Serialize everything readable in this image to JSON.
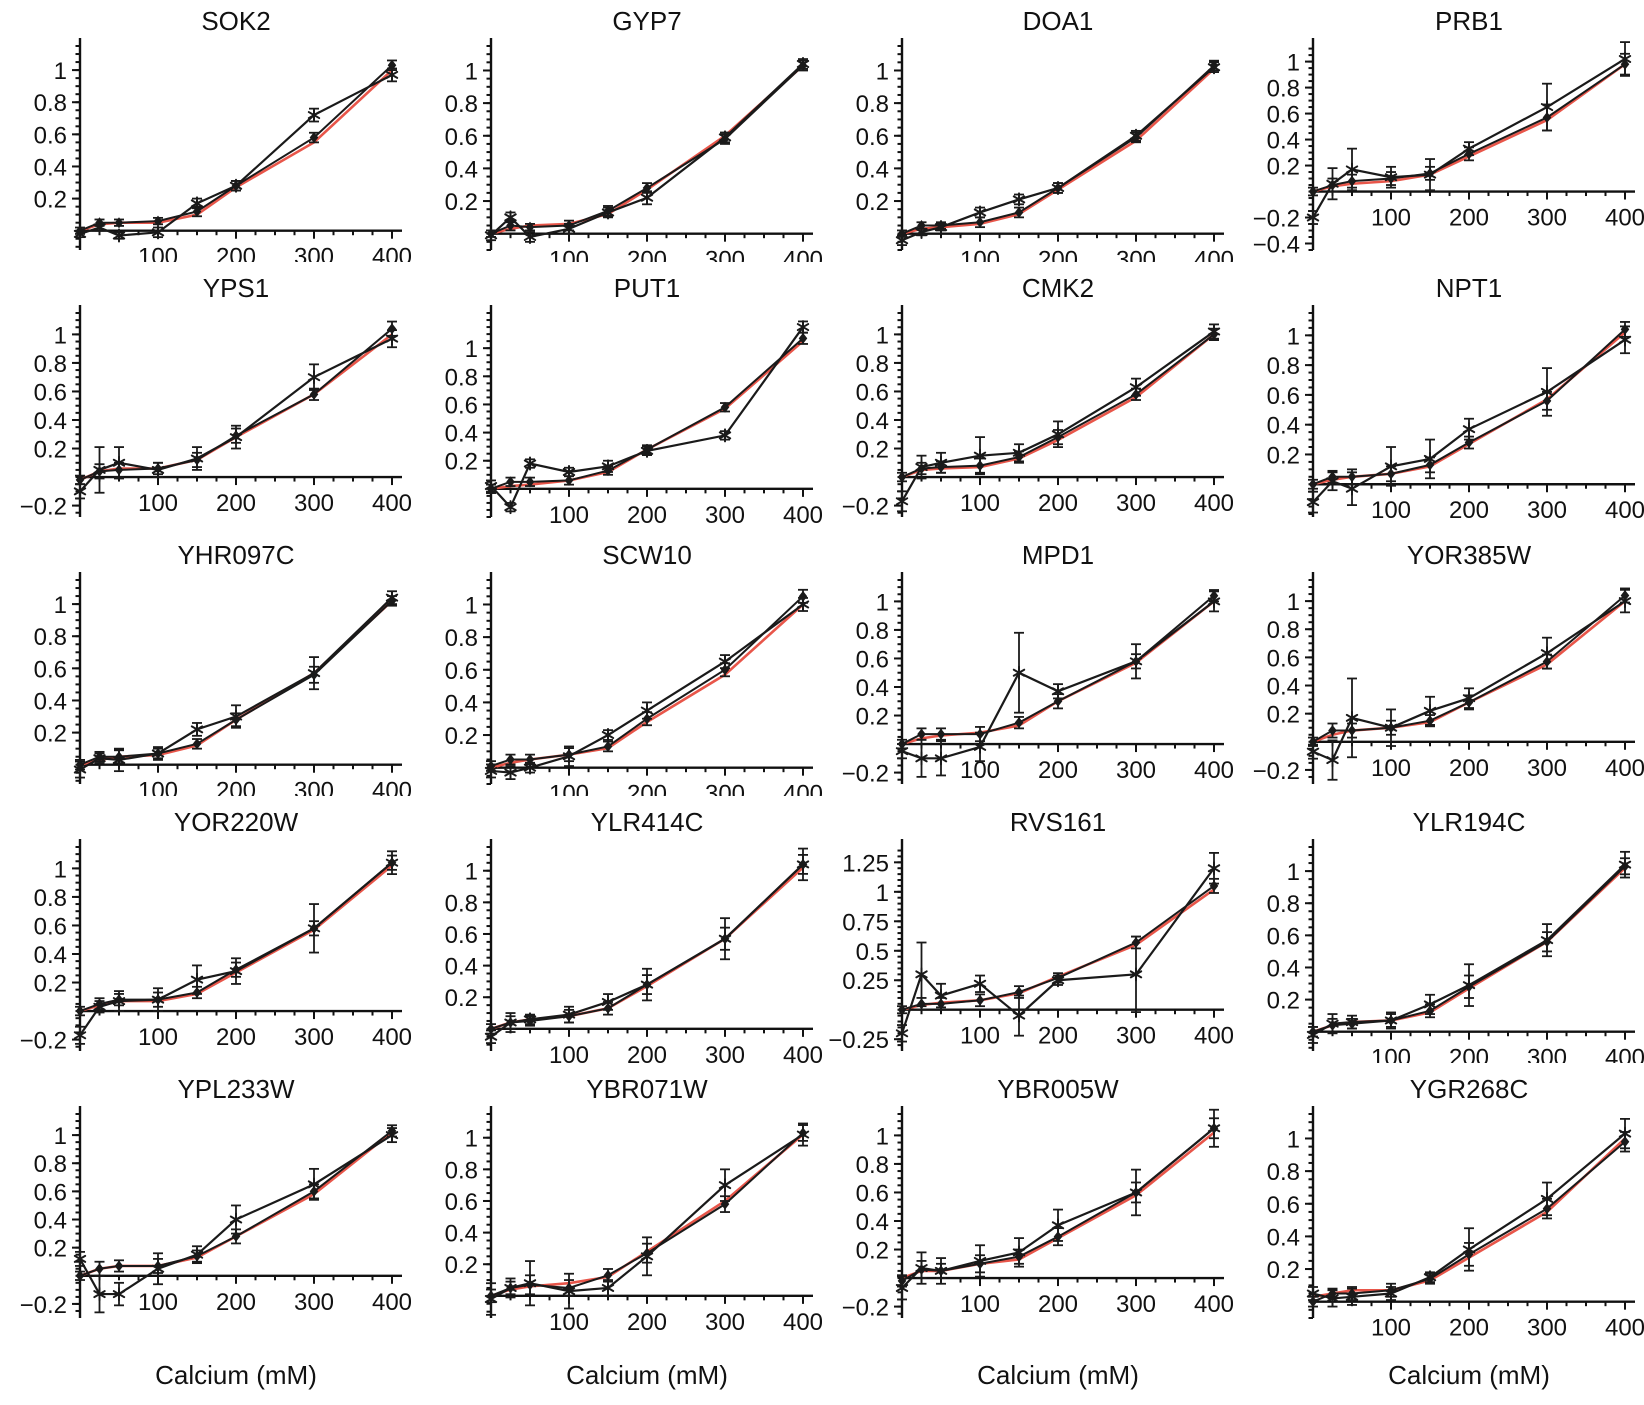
{
  "figure": {
    "xlabel": "Calcium (mM)",
    "x_ticks": [
      100,
      200,
      300,
      400
    ],
    "x_minor_step": 25,
    "x": [
      0,
      25,
      50,
      100,
      150,
      200,
      300,
      400
    ],
    "colors": {
      "model_line": "#e8564a",
      "data_line": "#1a1a1a",
      "axis": "#111111"
    },
    "series_names": {
      "red": "model_fit",
      "star": "observed-star-markers",
      "diamond": "observed-diamond-markers"
    }
  },
  "chart_data": [
    {
      "type": "line",
      "title": "SOK2",
      "yticks": [
        0.2,
        0.4,
        0.6,
        0.8,
        1
      ],
      "ylim": [
        -0.12,
        1.15
      ],
      "show_xlabel": false,
      "red": [
        0,
        0.04,
        0.05,
        0.05,
        0.1,
        0.27,
        0.55,
        1.0
      ],
      "star": [
        -0.02,
        0.02,
        -0.03,
        -0.01,
        0.17,
        0.28,
        0.72,
        0.97
      ],
      "star_err": [
        0.02,
        0.02,
        0.02,
        0.03,
        0.03,
        0.03,
        0.04,
        0.04
      ],
      "diamond": [
        0.0,
        0.05,
        0.05,
        0.06,
        0.12,
        0.28,
        0.58,
        1.03
      ],
      "diamond_err": [
        0.02,
        0.02,
        0.02,
        0.02,
        0.03,
        0.03,
        0.03,
        0.03
      ]
    },
    {
      "type": "line",
      "title": "GYP7",
      "yticks": [
        0.2,
        0.4,
        0.6,
        0.8,
        1
      ],
      "ylim": [
        -0.1,
        1.15
      ],
      "show_xlabel": false,
      "red": [
        0,
        0.03,
        0.05,
        0.06,
        0.12,
        0.27,
        0.6,
        1.03
      ],
      "star": [
        -0.01,
        0.1,
        -0.02,
        0.03,
        0.13,
        0.22,
        0.59,
        1.04
      ],
      "star_err": [
        0.03,
        0.03,
        0.03,
        0.03,
        0.03,
        0.04,
        0.03,
        0.03
      ],
      "diamond": [
        0.0,
        0.05,
        0.04,
        0.05,
        0.14,
        0.28,
        0.58,
        1.03
      ],
      "diamond_err": [
        0.02,
        0.03,
        0.02,
        0.03,
        0.03,
        0.03,
        0.03,
        0.03
      ]
    },
    {
      "type": "line",
      "title": "DOA1",
      "yticks": [
        0.2,
        0.4,
        0.6,
        0.8,
        1
      ],
      "ylim": [
        -0.1,
        1.15
      ],
      "show_xlabel": false,
      "red": [
        0,
        0.03,
        0.04,
        0.06,
        0.12,
        0.27,
        0.57,
        1.01
      ],
      "star": [
        -0.04,
        0.01,
        0.04,
        0.13,
        0.21,
        0.28,
        0.6,
        1.02
      ],
      "star_err": [
        0.03,
        0.02,
        0.02,
        0.03,
        0.03,
        0.03,
        0.03,
        0.03
      ],
      "diamond": [
        0.0,
        0.05,
        0.05,
        0.07,
        0.13,
        0.28,
        0.59,
        1.03
      ],
      "diamond_err": [
        0.02,
        0.02,
        0.02,
        0.03,
        0.03,
        0.03,
        0.03,
        0.03
      ]
    },
    {
      "type": "line",
      "title": "PRB1",
      "yticks": [
        -0.4,
        -0.2,
        0.2,
        0.4,
        0.6,
        0.8,
        1
      ],
      "ylim": [
        -0.45,
        1.12
      ],
      "show_xlabel": false,
      "red": [
        0.0,
        0.04,
        0.06,
        0.08,
        0.13,
        0.27,
        0.55,
        0.98
      ],
      "star": [
        -0.2,
        0.06,
        0.17,
        0.11,
        0.13,
        0.33,
        0.65,
        1.02
      ],
      "star_err": [
        0.05,
        0.12,
        0.16,
        0.08,
        0.12,
        0.05,
        0.18,
        0.13
      ],
      "diamond": [
        0.0,
        0.05,
        0.08,
        0.1,
        0.14,
        0.29,
        0.57,
        0.98
      ],
      "diamond_err": [
        0.03,
        0.05,
        0.05,
        0.05,
        0.05,
        0.05,
        0.1,
        0.08
      ]
    },
    {
      "type": "line",
      "title": "YPS1",
      "yticks": [
        -0.2,
        0.2,
        0.4,
        0.6,
        0.8,
        1
      ],
      "ylim": [
        -0.28,
        1.15
      ],
      "show_xlabel": false,
      "red": [
        -0.02,
        0.04,
        0.06,
        0.06,
        0.12,
        0.28,
        0.58,
        1.0
      ],
      "star": [
        -0.1,
        0.05,
        0.1,
        0.05,
        0.13,
        0.28,
        0.7,
        0.97
      ],
      "star_err": [
        0.05,
        0.16,
        0.11,
        0.05,
        0.08,
        0.08,
        0.09,
        0.06
      ],
      "diamond": [
        -0.02,
        0.04,
        0.05,
        0.06,
        0.12,
        0.29,
        0.58,
        1.04
      ],
      "diamond_err": [
        0.03,
        0.05,
        0.05,
        0.04,
        0.05,
        0.05,
        0.04,
        0.05
      ]
    },
    {
      "type": "line",
      "title": "PUT1",
      "yticks": [
        0.2,
        0.4,
        0.6,
        0.8,
        1
      ],
      "ylim": [
        -0.2,
        1.25
      ],
      "show_xlabel": false,
      "red": [
        0.0,
        0.02,
        0.03,
        0.06,
        0.12,
        0.28,
        0.57,
        1.05
      ],
      "star": [
        0.02,
        -0.13,
        0.18,
        0.12,
        0.16,
        0.27,
        0.38,
        1.15
      ],
      "star_err": [
        0.04,
        0.03,
        0.03,
        0.03,
        0.04,
        0.03,
        0.03,
        0.04
      ],
      "diamond": [
        0.0,
        0.05,
        0.05,
        0.06,
        0.13,
        0.28,
        0.58,
        1.07
      ],
      "diamond_err": [
        0.03,
        0.03,
        0.03,
        0.03,
        0.03,
        0.03,
        0.03,
        0.04
      ]
    },
    {
      "type": "line",
      "title": "CMK2",
      "yticks": [
        -0.2,
        0.2,
        0.4,
        0.6,
        0.8,
        1
      ],
      "ylim": [
        -0.28,
        1.15
      ],
      "show_xlabel": false,
      "red": [
        0.0,
        0.05,
        0.06,
        0.07,
        0.13,
        0.26,
        0.56,
        1.0
      ],
      "star": [
        -0.17,
        0.07,
        0.1,
        0.15,
        0.17,
        0.3,
        0.63,
        1.02
      ],
      "star_err": [
        0.07,
        0.08,
        0.07,
        0.13,
        0.06,
        0.09,
        0.06,
        0.05
      ],
      "diamond": [
        0.0,
        0.06,
        0.07,
        0.08,
        0.14,
        0.28,
        0.58,
        1.0
      ],
      "diamond_err": [
        0.03,
        0.04,
        0.04,
        0.05,
        0.04,
        0.05,
        0.04,
        0.04
      ]
    },
    {
      "type": "line",
      "title": "NPT1",
      "yticks": [
        0.2,
        0.4,
        0.6,
        0.8,
        1
      ],
      "ylim": [
        -0.22,
        1.15
      ],
      "show_xlabel": false,
      "red": [
        0.0,
        0.03,
        0.05,
        0.07,
        0.12,
        0.27,
        0.57,
        1.02
      ],
      "star": [
        -0.12,
        0.02,
        -0.03,
        0.12,
        0.17,
        0.37,
        0.62,
        0.97
      ],
      "star_err": [
        0.07,
        0.06,
        0.11,
        0.13,
        0.13,
        0.07,
        0.16,
        0.09
      ],
      "diamond": [
        0.0,
        0.05,
        0.05,
        0.07,
        0.13,
        0.28,
        0.56,
        1.04
      ],
      "diamond_err": [
        0.03,
        0.04,
        0.05,
        0.05,
        0.05,
        0.04,
        0.06,
        0.05
      ]
    },
    {
      "type": "line",
      "title": "YHR097C",
      "yticks": [
        0.2,
        0.4,
        0.6,
        0.8,
        1
      ],
      "ylim": [
        -0.12,
        1.15
      ],
      "show_xlabel": false,
      "red": [
        0.0,
        0.03,
        0.05,
        0.06,
        0.12,
        0.28,
        0.57,
        1.02
      ],
      "star": [
        -0.03,
        0.04,
        0.03,
        0.07,
        0.22,
        0.3,
        0.57,
        1.04
      ],
      "star_err": [
        0.05,
        0.03,
        0.07,
        0.04,
        0.04,
        0.07,
        0.1,
        0.04
      ],
      "diamond": [
        0.0,
        0.05,
        0.05,
        0.07,
        0.13,
        0.28,
        0.56,
        1.02
      ],
      "diamond_err": [
        0.03,
        0.03,
        0.04,
        0.03,
        0.03,
        0.04,
        0.05,
        0.03
      ]
    },
    {
      "type": "line",
      "title": "SCW10",
      "yticks": [
        0.2,
        0.4,
        0.6,
        0.8,
        1
      ],
      "ylim": [
        -0.1,
        1.15
      ],
      "show_xlabel": false,
      "red": [
        0.0,
        0.03,
        0.05,
        0.08,
        0.12,
        0.28,
        0.57,
        1.0
      ],
      "star": [
        -0.02,
        -0.03,
        0.0,
        0.07,
        0.2,
        0.35,
        0.65,
        1.0
      ],
      "star_err": [
        0.04,
        0.04,
        0.03,
        0.06,
        0.03,
        0.05,
        0.04,
        0.04
      ],
      "diamond": [
        0.01,
        0.05,
        0.05,
        0.08,
        0.13,
        0.3,
        0.6,
        1.05
      ],
      "diamond_err": [
        0.03,
        0.03,
        0.03,
        0.04,
        0.03,
        0.04,
        0.04,
        0.04
      ]
    },
    {
      "type": "line",
      "title": "MPD1",
      "yticks": [
        -0.2,
        0.2,
        0.4,
        0.6,
        0.8,
        1
      ],
      "ylim": [
        -0.28,
        1.15
      ],
      "show_xlabel": false,
      "red": [
        0.0,
        0.04,
        0.06,
        0.08,
        0.13,
        0.3,
        0.57,
        1.0
      ],
      "star": [
        -0.05,
        -0.1,
        -0.1,
        -0.02,
        0.5,
        0.37,
        0.58,
        1.0
      ],
      "star_err": [
        0.05,
        0.13,
        0.12,
        0.1,
        0.28,
        0.05,
        0.12,
        0.07
      ],
      "diamond": [
        0.0,
        0.07,
        0.07,
        0.07,
        0.15,
        0.3,
        0.58,
        1.04
      ],
      "diamond_err": [
        0.03,
        0.04,
        0.04,
        0.05,
        0.04,
        0.05,
        0.05,
        0.04
      ]
    },
    {
      "type": "line",
      "title": "YOR385W",
      "yticks": [
        -0.2,
        0.2,
        0.4,
        0.6,
        0.8,
        1
      ],
      "ylim": [
        -0.3,
        1.15
      ],
      "show_xlabel": false,
      "red": [
        0.0,
        0.05,
        0.08,
        0.1,
        0.14,
        0.28,
        0.55,
        1.0
      ],
      "star": [
        -0.07,
        -0.13,
        0.17,
        0.1,
        0.22,
        0.31,
        0.63,
        1.0
      ],
      "star_err": [
        0.05,
        0.14,
        0.28,
        0.13,
        0.1,
        0.07,
        0.11,
        0.08
      ],
      "diamond": [
        0.0,
        0.08,
        0.08,
        0.1,
        0.15,
        0.28,
        0.57,
        1.04
      ],
      "diamond_err": [
        0.03,
        0.05,
        0.05,
        0.05,
        0.04,
        0.05,
        0.05,
        0.05
      ]
    },
    {
      "type": "line",
      "title": "YOR220W",
      "yticks": [
        -0.2,
        0.2,
        0.4,
        0.6,
        0.8,
        1
      ],
      "ylim": [
        -0.28,
        1.15
      ],
      "show_xlabel": false,
      "red": [
        0.0,
        0.04,
        0.07,
        0.07,
        0.12,
        0.27,
        0.57,
        1.02
      ],
      "star": [
        -0.17,
        0.03,
        0.07,
        0.08,
        0.22,
        0.28,
        0.58,
        1.04
      ],
      "star_err": [
        0.06,
        0.04,
        0.07,
        0.08,
        0.1,
        0.09,
        0.17,
        0.08
      ],
      "diamond": [
        0.0,
        0.05,
        0.08,
        0.08,
        0.13,
        0.29,
        0.58,
        1.04
      ],
      "diamond_err": [
        0.03,
        0.04,
        0.04,
        0.05,
        0.04,
        0.05,
        0.05,
        0.05
      ]
    },
    {
      "type": "line",
      "title": "YLR414C",
      "yticks": [
        0.2,
        0.4,
        0.6,
        0.8,
        1
      ],
      "ylim": [
        -0.14,
        1.15
      ],
      "show_xlabel": false,
      "red": [
        0.0,
        0.04,
        0.06,
        0.08,
        0.13,
        0.27,
        0.57,
        1.02
      ],
      "star": [
        -0.05,
        0.04,
        0.06,
        0.09,
        0.17,
        0.28,
        0.57,
        1.04
      ],
      "star_err": [
        0.04,
        0.06,
        0.03,
        0.05,
        0.05,
        0.1,
        0.13,
        0.1
      ],
      "diamond": [
        0.0,
        0.04,
        0.05,
        0.08,
        0.13,
        0.28,
        0.57,
        1.04
      ],
      "diamond_err": [
        0.03,
        0.04,
        0.03,
        0.04,
        0.04,
        0.06,
        0.07,
        0.06
      ]
    },
    {
      "type": "line",
      "title": "RVS161",
      "yticks": [
        -0.25,
        0.25,
        0.5,
        0.75,
        1,
        1.25
      ],
      "ylim": [
        -0.35,
        1.38
      ],
      "show_xlabel": false,
      "red": [
        0.0,
        0.04,
        0.06,
        0.08,
        0.14,
        0.28,
        0.55,
        1.02
      ],
      "star": [
        -0.2,
        0.3,
        0.12,
        0.22,
        -0.05,
        0.25,
        0.3,
        1.2
      ],
      "star_err": [
        0.07,
        0.27,
        0.1,
        0.07,
        0.17,
        0.04,
        0.32,
        0.13
      ],
      "diamond": [
        0.0,
        0.05,
        0.05,
        0.08,
        0.15,
        0.27,
        0.57,
        1.05
      ],
      "diamond_err": [
        0.03,
        0.05,
        0.05,
        0.05,
        0.05,
        0.04,
        0.05,
        0.06
      ]
    },
    {
      "type": "line",
      "title": "YLR194C",
      "yticks": [
        0.2,
        0.4,
        0.6,
        0.8,
        1
      ],
      "ylim": [
        -0.12,
        1.15
      ],
      "show_xlabel": false,
      "red": [
        0.0,
        0.04,
        0.06,
        0.07,
        0.12,
        0.27,
        0.56,
        1.02
      ],
      "star": [
        -0.02,
        0.05,
        0.06,
        0.07,
        0.17,
        0.29,
        0.57,
        1.04
      ],
      "star_err": [
        0.05,
        0.06,
        0.04,
        0.05,
        0.06,
        0.13,
        0.1,
        0.08
      ],
      "diamond": [
        0.0,
        0.04,
        0.05,
        0.07,
        0.13,
        0.28,
        0.56,
        1.03
      ],
      "diamond_err": [
        0.03,
        0.04,
        0.03,
        0.04,
        0.04,
        0.07,
        0.06,
        0.05
      ]
    },
    {
      "type": "line",
      "title": "YPL233W",
      "yticks": [
        -0.2,
        0.2,
        0.4,
        0.6,
        0.8,
        1
      ],
      "ylim": [
        -0.3,
        1.15
      ],
      "show_xlabel": true,
      "red": [
        0.0,
        0.05,
        0.07,
        0.07,
        0.13,
        0.28,
        0.58,
        1.02
      ],
      "star": [
        0.12,
        -0.13,
        -0.13,
        0.05,
        0.15,
        0.4,
        0.65,
        1.0
      ],
      "star_err": [
        0.05,
        0.13,
        0.08,
        0.11,
        0.06,
        0.1,
        0.11,
        0.05
      ],
      "diamond": [
        0.0,
        0.05,
        0.07,
        0.07,
        0.14,
        0.28,
        0.6,
        1.03
      ],
      "diamond_err": [
        0.03,
        0.05,
        0.04,
        0.05,
        0.04,
        0.05,
        0.05,
        0.04
      ]
    },
    {
      "type": "line",
      "title": "YBR071W",
      "yticks": [
        0.2,
        0.4,
        0.6,
        0.8,
        1
      ],
      "ylim": [
        -0.14,
        1.15
      ],
      "show_xlabel": true,
      "red": [
        0.0,
        0.04,
        0.06,
        0.08,
        0.12,
        0.28,
        0.6,
        1.02
      ],
      "star": [
        -0.02,
        0.05,
        0.08,
        0.03,
        0.05,
        0.25,
        0.7,
        1.02
      ],
      "star_err": [
        0.1,
        0.06,
        0.14,
        0.11,
        0.05,
        0.12,
        0.1,
        0.07
      ],
      "diamond": [
        0.0,
        0.05,
        0.07,
        0.05,
        0.13,
        0.27,
        0.58,
        1.03
      ],
      "diamond_err": [
        0.04,
        0.04,
        0.06,
        0.05,
        0.04,
        0.06,
        0.05,
        0.05
      ]
    },
    {
      "type": "line",
      "title": "YBR005W",
      "yticks": [
        -0.2,
        0.2,
        0.4,
        0.6,
        0.8,
        1
      ],
      "ylim": [
        -0.28,
        1.15
      ],
      "show_xlabel": true,
      "red": [
        0.0,
        0.05,
        0.05,
        0.1,
        0.13,
        0.28,
        0.58,
        1.02
      ],
      "star": [
        -0.07,
        0.07,
        0.05,
        0.12,
        0.18,
        0.37,
        0.6,
        1.05
      ],
      "star_err": [
        0.08,
        0.11,
        0.09,
        0.11,
        0.1,
        0.11,
        0.16,
        0.13
      ],
      "diamond": [
        -0.02,
        0.06,
        0.05,
        0.1,
        0.15,
        0.29,
        0.6,
        1.05
      ],
      "diamond_err": [
        0.04,
        0.06,
        0.05,
        0.06,
        0.05,
        0.06,
        0.07,
        0.07
      ]
    },
    {
      "type": "line",
      "title": "YGR268C",
      "yticks": [
        0.2,
        0.4,
        0.6,
        0.8,
        1
      ],
      "ylim": [
        -0.1,
        1.15
      ],
      "show_xlabel": true,
      "red": [
        0.03,
        0.05,
        0.07,
        0.07,
        0.13,
        0.27,
        0.55,
        1.0
      ],
      "star": [
        0.05,
        0.02,
        0.03,
        0.05,
        0.15,
        0.32,
        0.63,
        1.03
      ],
      "star_err": [
        0.04,
        0.05,
        0.05,
        0.04,
        0.03,
        0.13,
        0.1,
        0.09
      ],
      "diamond": [
        0.0,
        0.05,
        0.05,
        0.07,
        0.14,
        0.29,
        0.57,
        0.98
      ],
      "diamond_err": [
        0.03,
        0.03,
        0.04,
        0.04,
        0.03,
        0.07,
        0.06,
        0.06
      ]
    }
  ]
}
